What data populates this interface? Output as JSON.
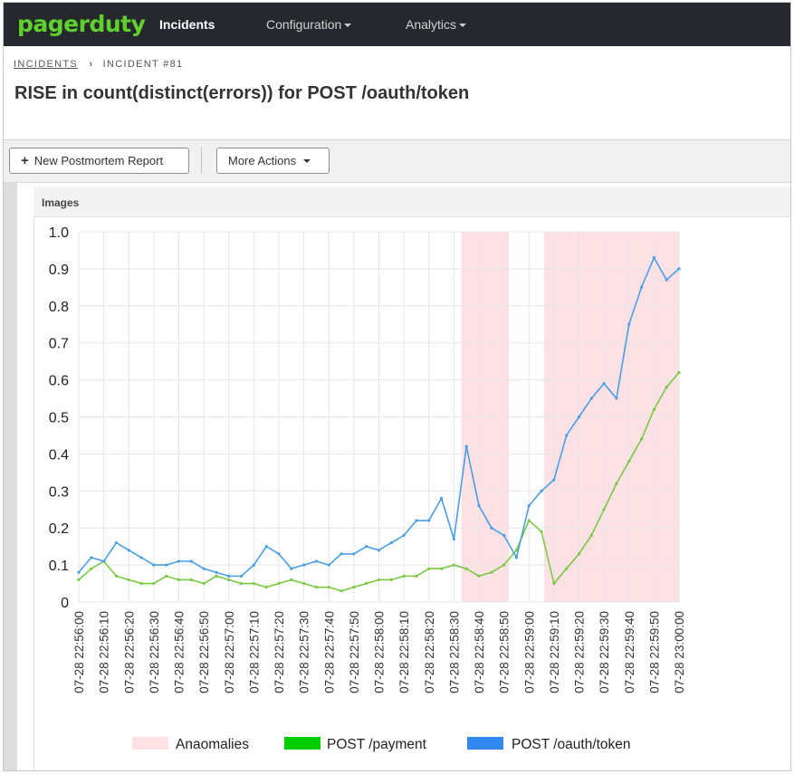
{
  "navbar": {
    "logo": "pagerduty",
    "items": [
      {
        "label": "Incidents",
        "active": true
      },
      {
        "label": "Configuration",
        "dropdown": true
      },
      {
        "label": "Analytics",
        "dropdown": true
      }
    ]
  },
  "breadcrumb": {
    "parent": "INCIDENTS",
    "current": "INCIDENT #81"
  },
  "page_title": "RISE in count(distinct(errors)) for POST /oauth/token",
  "toolbar": {
    "new_postmortem": "New Postmortem Report",
    "more_actions": "More Actions"
  },
  "panel": {
    "title": "Images"
  },
  "colors": {
    "navbar": "#25292e",
    "brand": "#5fd02c",
    "anomaly": "#fde1e4",
    "payment": "#7ac943",
    "oauth": "#4a9fe6"
  },
  "chart_data": {
    "type": "line",
    "ylim": [
      0,
      1.0
    ],
    "yticks": [
      "0",
      "0.1",
      "0.2",
      "0.3",
      "0.4",
      "0.5",
      "0.6",
      "0.7",
      "0.8",
      "0.9",
      "1.0"
    ],
    "xticks": [
      "07-28 22:56:00",
      "07-28 22:56:10",
      "07-28 22:56:20",
      "07-28 22:56:30",
      "07-28 22:56:40",
      "07-28 22:56:50",
      "07-28 22:57:00",
      "07-28 22:57:10",
      "07-28 22:57:20",
      "07-28 22:57:30",
      "07-28 22:57:40",
      "07-28 22:57:50",
      "07-28 22:58:00",
      "07-28 22:58:10",
      "07-28 22:58:20",
      "07-28 22:58:30",
      "07-28 22:58:40",
      "07-28 22:58:50",
      "07-28 22:59:00",
      "07-28 22:59:10",
      "07-28 22:59:20",
      "07-28 22:59:30",
      "07-28 22:59:40",
      "07-28 22:59:50",
      "07-28 23:00:00"
    ],
    "grid": true,
    "legend": [
      "Anaomalies",
      "POST  /payment",
      "POST /oauth/token"
    ],
    "anomalies": [
      {
        "start": "07-28 22:58:33",
        "end": "07-28 22:58:52"
      },
      {
        "start": "07-28 22:59:06",
        "end": "07-28 23:00:00"
      }
    ],
    "series": [
      {
        "name": "POST /oauth/token",
        "x": [
          "22:56:00",
          "22:56:05",
          "22:56:10",
          "22:56:15",
          "22:56:20",
          "22:56:25",
          "22:56:30",
          "22:56:35",
          "22:56:40",
          "22:56:45",
          "22:56:50",
          "22:56:55",
          "22:57:00",
          "22:57:05",
          "22:57:10",
          "22:57:15",
          "22:57:20",
          "22:57:25",
          "22:57:30",
          "22:57:35",
          "22:57:40",
          "22:57:45",
          "22:57:50",
          "22:57:55",
          "22:58:00",
          "22:58:05",
          "22:58:10",
          "22:58:15",
          "22:58:20",
          "22:58:25",
          "22:58:30",
          "22:58:35",
          "22:58:40",
          "22:58:45",
          "22:58:50",
          "22:58:55",
          "22:59:00",
          "22:59:05",
          "22:59:10",
          "22:59:15",
          "22:59:20",
          "22:59:25",
          "22:59:30",
          "22:59:35",
          "22:59:40",
          "22:59:45",
          "22:59:50",
          "22:59:55",
          "23:00:00"
        ],
        "values": [
          0.08,
          0.12,
          0.11,
          0.16,
          0.14,
          0.12,
          0.1,
          0.1,
          0.11,
          0.11,
          0.09,
          0.08,
          0.07,
          0.07,
          0.1,
          0.15,
          0.13,
          0.09,
          0.1,
          0.11,
          0.1,
          0.13,
          0.13,
          0.15,
          0.14,
          0.16,
          0.18,
          0.22,
          0.22,
          0.28,
          0.17,
          0.42,
          0.26,
          0.2,
          0.18,
          0.12,
          0.26,
          0.3,
          0.33,
          0.45,
          0.5,
          0.55,
          0.59,
          0.55,
          0.75,
          0.85,
          0.93,
          0.87,
          0.9
        ]
      },
      {
        "name": "POST  /payment",
        "x": [
          "22:56:00",
          "22:56:05",
          "22:56:10",
          "22:56:15",
          "22:56:20",
          "22:56:25",
          "22:56:30",
          "22:56:35",
          "22:56:40",
          "22:56:45",
          "22:56:50",
          "22:56:55",
          "22:57:00",
          "22:57:05",
          "22:57:10",
          "22:57:15",
          "22:57:20",
          "22:57:25",
          "22:57:30",
          "22:57:35",
          "22:57:40",
          "22:57:45",
          "22:57:50",
          "22:57:55",
          "22:58:00",
          "22:58:05",
          "22:58:10",
          "22:58:15",
          "22:58:20",
          "22:58:25",
          "22:58:30",
          "22:58:35",
          "22:58:40",
          "22:58:45",
          "22:58:50",
          "22:58:55",
          "22:59:00",
          "22:59:05",
          "22:59:10",
          "22:59:15",
          "22:59:20",
          "22:59:25",
          "22:59:30",
          "22:59:35",
          "22:59:40",
          "22:59:45",
          "22:59:50",
          "22:59:55",
          "23:00:00"
        ],
        "values": [
          0.06,
          0.09,
          0.11,
          0.07,
          0.06,
          0.05,
          0.05,
          0.07,
          0.06,
          0.06,
          0.05,
          0.07,
          0.06,
          0.05,
          0.05,
          0.04,
          0.05,
          0.06,
          0.05,
          0.04,
          0.04,
          0.03,
          0.04,
          0.05,
          0.06,
          0.06,
          0.07,
          0.07,
          0.09,
          0.09,
          0.1,
          0.09,
          0.07,
          0.08,
          0.1,
          0.14,
          0.22,
          0.19,
          0.05,
          0.09,
          0.13,
          0.18,
          0.25,
          0.32,
          0.38,
          0.44,
          0.52,
          0.58,
          0.62
        ]
      }
    ]
  }
}
